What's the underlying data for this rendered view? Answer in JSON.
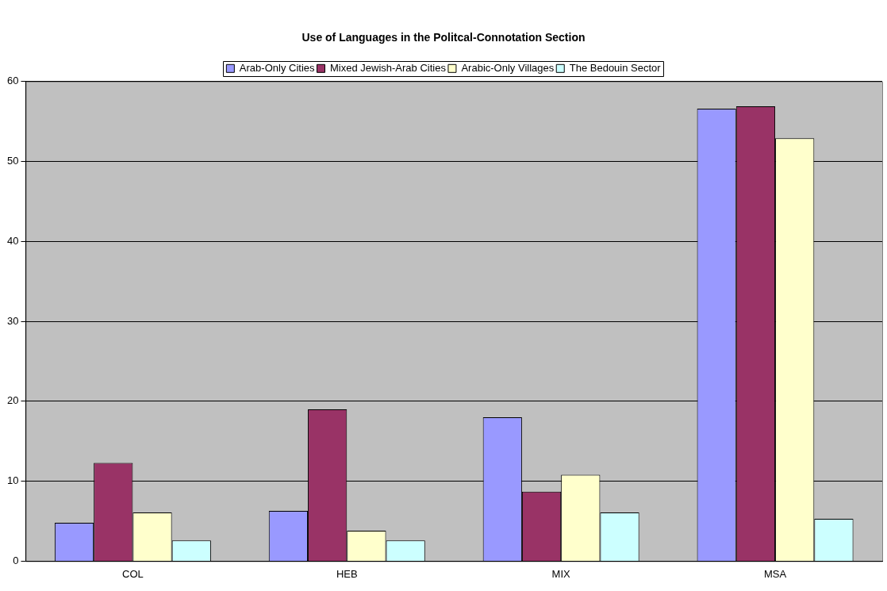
{
  "chart_data": {
    "type": "bar",
    "title": "Use of Languages in the Politcal-Connotation Section",
    "categories": [
      "COL",
      "HEB",
      "MIX",
      "MSA"
    ],
    "series": [
      {
        "name": "Arab-Only Cities",
        "color": "#9999ff",
        "values": [
          4.8,
          6.3,
          18,
          56.6
        ]
      },
      {
        "name": "Mixed Jewish-Arab Cities",
        "color": "#993366",
        "values": [
          12.3,
          19,
          8.7,
          56.9
        ]
      },
      {
        "name": "Arabic-Only Villages",
        "color": "#ffffcc",
        "values": [
          6.1,
          3.8,
          10.8,
          52.9
        ]
      },
      {
        "name": "The Bedouin Sector",
        "color": "#ccffff",
        "values": [
          2.6,
          2.6,
          6.1,
          5.3
        ]
      }
    ],
    "ylim": [
      0,
      60
    ],
    "yticks": [
      0,
      10,
      20,
      30,
      40,
      50,
      60
    ],
    "grid": "y",
    "legend": "top"
  }
}
